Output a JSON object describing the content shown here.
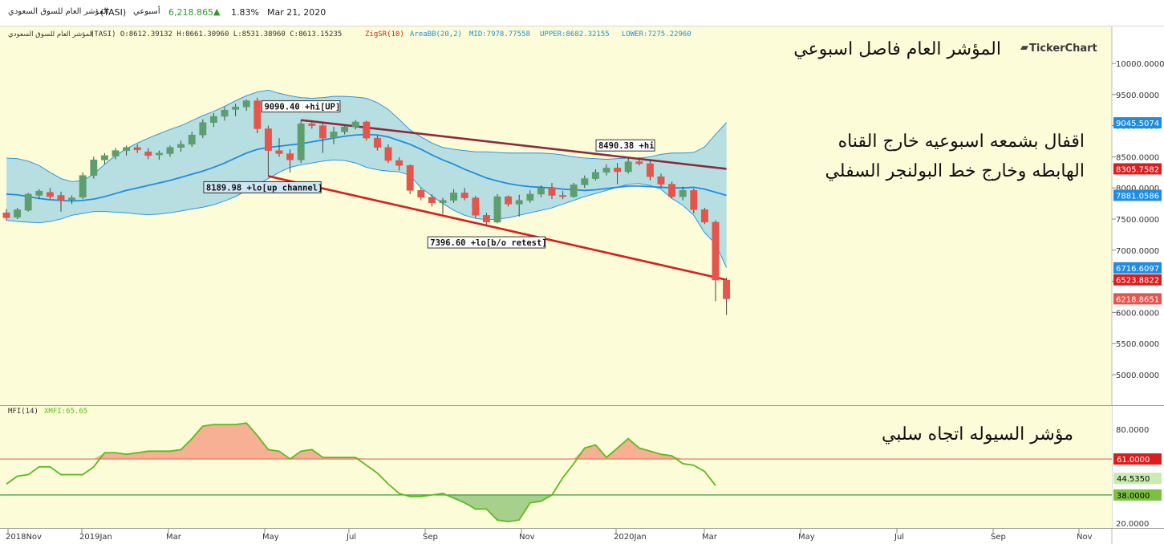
{
  "header": {
    "name": "المؤشر العام للسوق السعودي",
    "symbol": "(TASI)",
    "period": "أسبوعي",
    "last": "6,218.865",
    "change_pct": "1.83%",
    "date": "Mar 21, 2020",
    "up_color": "#2e9a2e"
  },
  "info_line": {
    "name": "المؤشر العام للسوق السعودي",
    "ohlc": "(TASI)  O:8612.39132  H:8661.30960  L:8531.38960  C:8613.15235",
    "zigsr": "ZigSR(10)",
    "bb": "AreaBB(20,2)",
    "mid": "MID:7978.77558",
    "upper": "UPPER:8682.32155",
    "lower": "LOWER:7275.22960"
  },
  "brand": "TickerChart",
  "annotations": {
    "title": "المؤشر العام فاصل اسبوعي",
    "note_line1": "اقفال بشمعه اسبوعيه خارج القناه",
    "note_line2": "الهابطه وخارج خط البولنجر السفلي",
    "mfi_note": "مؤشر السيوله اتجاه سلبي"
  },
  "mfi_header": {
    "label": "MFI(14)",
    "xmfi": "XMFI:65.65"
  },
  "chart_data": [
    {
      "type": "candlestick",
      "ylim": [
        4600,
        10400
      ],
      "y_ticks": [
        "10000.0000",
        "9500.0000",
        "9000.0000",
        "8500.0000",
        "8000.0000",
        "7500.0000",
        "7000.0000",
        "6500.0000",
        "6000.0000",
        "5500.0000",
        "5000.0000"
      ],
      "x_ticks": [
        "2018Nov",
        "2019Jan",
        "Mar",
        "May",
        "Jul",
        "Sep",
        "Nov",
        "2020Jan",
        "Mar",
        "May",
        "Jul",
        "Sep",
        "Nov"
      ],
      "candles": [
        {
          "o": 7600,
          "h": 7660,
          "l": 7480,
          "c": 7520
        },
        {
          "o": 7530,
          "h": 7680,
          "l": 7500,
          "c": 7650
        },
        {
          "o": 7640,
          "h": 7920,
          "l": 7620,
          "c": 7900
        },
        {
          "o": 7880,
          "h": 7980,
          "l": 7820,
          "c": 7950
        },
        {
          "o": 7930,
          "h": 8000,
          "l": 7820,
          "c": 7860
        },
        {
          "o": 7880,
          "h": 7940,
          "l": 7620,
          "c": 7800
        },
        {
          "o": 7810,
          "h": 7880,
          "l": 7740,
          "c": 7840
        },
        {
          "o": 7850,
          "h": 8250,
          "l": 7820,
          "c": 8200
        },
        {
          "o": 8200,
          "h": 8500,
          "l": 8150,
          "c": 8450
        },
        {
          "o": 8450,
          "h": 8560,
          "l": 8380,
          "c": 8520
        },
        {
          "o": 8510,
          "h": 8640,
          "l": 8460,
          "c": 8600
        },
        {
          "o": 8600,
          "h": 8680,
          "l": 8520,
          "c": 8650
        },
        {
          "o": 8650,
          "h": 8700,
          "l": 8560,
          "c": 8610
        },
        {
          "o": 8580,
          "h": 8640,
          "l": 8460,
          "c": 8520
        },
        {
          "o": 8530,
          "h": 8600,
          "l": 8450,
          "c": 8560
        },
        {
          "o": 8550,
          "h": 8680,
          "l": 8500,
          "c": 8650
        },
        {
          "o": 8650,
          "h": 8760,
          "l": 8580,
          "c": 8700
        },
        {
          "o": 8700,
          "h": 8900,
          "l": 8660,
          "c": 8850
        },
        {
          "o": 8850,
          "h": 9100,
          "l": 8800,
          "c": 9050
        },
        {
          "o": 9050,
          "h": 9200,
          "l": 8980,
          "c": 9150
        },
        {
          "o": 9150,
          "h": 9300,
          "l": 9080,
          "c": 9250
        },
        {
          "o": 9260,
          "h": 9350,
          "l": 9150,
          "c": 9300
        },
        {
          "o": 9300,
          "h": 9420,
          "l": 9240,
          "c": 9400
        },
        {
          "o": 9400,
          "h": 9450,
          "l": 8880,
          "c": 8950
        },
        {
          "o": 8950,
          "h": 9000,
          "l": 8190,
          "c": 8600
        },
        {
          "o": 8600,
          "h": 8800,
          "l": 8500,
          "c": 8550
        },
        {
          "o": 8550,
          "h": 8620,
          "l": 8250,
          "c": 8450
        },
        {
          "o": 8450,
          "h": 9090,
          "l": 8400,
          "c": 9030
        },
        {
          "o": 9030,
          "h": 9080,
          "l": 8950,
          "c": 9000
        },
        {
          "o": 9000,
          "h": 9050,
          "l": 8560,
          "c": 8800
        },
        {
          "o": 8800,
          "h": 8980,
          "l": 8700,
          "c": 8900
        },
        {
          "o": 8900,
          "h": 9020,
          "l": 8860,
          "c": 8980
        },
        {
          "o": 8980,
          "h": 9090,
          "l": 8940,
          "c": 9060
        },
        {
          "o": 9060,
          "h": 9080,
          "l": 8760,
          "c": 8800
        },
        {
          "o": 8800,
          "h": 8840,
          "l": 8600,
          "c": 8650
        },
        {
          "o": 8650,
          "h": 8700,
          "l": 8400,
          "c": 8440
        },
        {
          "o": 8440,
          "h": 8490,
          "l": 8280,
          "c": 8360
        },
        {
          "o": 8360,
          "h": 8380,
          "l": 7900,
          "c": 7960
        },
        {
          "o": 7960,
          "h": 8010,
          "l": 7800,
          "c": 7850
        },
        {
          "o": 7850,
          "h": 7900,
          "l": 7700,
          "c": 7760
        },
        {
          "o": 7760,
          "h": 7840,
          "l": 7580,
          "c": 7800
        },
        {
          "o": 7800,
          "h": 7980,
          "l": 7760,
          "c": 7920
        },
        {
          "o": 7920,
          "h": 8000,
          "l": 7800,
          "c": 7840
        },
        {
          "o": 7840,
          "h": 7870,
          "l": 7520,
          "c": 7560
        },
        {
          "o": 7560,
          "h": 7600,
          "l": 7396,
          "c": 7450
        },
        {
          "o": 7450,
          "h": 7900,
          "l": 7430,
          "c": 7860
        },
        {
          "o": 7860,
          "h": 7880,
          "l": 7700,
          "c": 7740
        },
        {
          "o": 7740,
          "h": 7890,
          "l": 7540,
          "c": 7800
        },
        {
          "o": 7800,
          "h": 7960,
          "l": 7760,
          "c": 7900
        },
        {
          "o": 7900,
          "h": 8040,
          "l": 7850,
          "c": 8000
        },
        {
          "o": 8000,
          "h": 8080,
          "l": 7820,
          "c": 7880
        },
        {
          "o": 7880,
          "h": 7950,
          "l": 7820,
          "c": 7860
        },
        {
          "o": 7860,
          "h": 8080,
          "l": 7840,
          "c": 8050
        },
        {
          "o": 8050,
          "h": 8200,
          "l": 8000,
          "c": 8150
        },
        {
          "o": 8150,
          "h": 8300,
          "l": 8120,
          "c": 8250
        },
        {
          "o": 8250,
          "h": 8380,
          "l": 8200,
          "c": 8320
        },
        {
          "o": 8320,
          "h": 8400,
          "l": 8060,
          "c": 8260
        },
        {
          "o": 8260,
          "h": 8480,
          "l": 8230,
          "c": 8420
        },
        {
          "o": 8420,
          "h": 8490,
          "l": 8360,
          "c": 8390
        },
        {
          "o": 8390,
          "h": 8440,
          "l": 8120,
          "c": 8180
        },
        {
          "o": 8180,
          "h": 8230,
          "l": 8000,
          "c": 8060
        },
        {
          "o": 8060,
          "h": 8100,
          "l": 7830,
          "c": 7860
        },
        {
          "o": 7860,
          "h": 8020,
          "l": 7800,
          "c": 7960
        },
        {
          "o": 7960,
          "h": 7990,
          "l": 7590,
          "c": 7650
        },
        {
          "o": 7650,
          "h": 7680,
          "l": 7420,
          "c": 7450
        },
        {
          "o": 7450,
          "h": 7480,
          "l": 6180,
          "c": 6520
        },
        {
          "o": 6520,
          "h": 6560,
          "l": 5960,
          "c": 6219
        }
      ],
      "bb_upper": [
        8480,
        8470,
        8430,
        8360,
        8250,
        8150,
        8100,
        8120,
        8220,
        8380,
        8520,
        8630,
        8720,
        8800,
        8870,
        8940,
        9000,
        9080,
        9160,
        9230,
        9310,
        9400,
        9480,
        9540,
        9570,
        9520,
        9480,
        9450,
        9440,
        9450,
        9470,
        9470,
        9460,
        9440,
        9370,
        9260,
        9100,
        8930,
        8820,
        8720,
        8650,
        8620,
        8600,
        8580,
        8580,
        8570,
        8560,
        8560,
        8560,
        8560,
        8550,
        8530,
        8500,
        8480,
        8470,
        8460,
        8470,
        8480,
        8480,
        8500,
        8540,
        8560,
        8560,
        8570,
        8660,
        8860,
        9050
      ],
      "bb_mid": [
        7900,
        7890,
        7860,
        7830,
        7810,
        7800,
        7790,
        7800,
        7820,
        7860,
        7910,
        7960,
        8000,
        8040,
        8080,
        8120,
        8170,
        8220,
        8270,
        8330,
        8400,
        8480,
        8560,
        8620,
        8650,
        8670,
        8690,
        8710,
        8740,
        8770,
        8800,
        8830,
        8850,
        8860,
        8850,
        8820,
        8760,
        8700,
        8620,
        8530,
        8450,
        8380,
        8300,
        8230,
        8160,
        8110,
        8070,
        8040,
        8020,
        8010,
        8000,
        7980,
        7970,
        7960,
        7970,
        7990,
        8010,
        8030,
        8030,
        8020,
        8010,
        8000,
        8000,
        8010,
        7980,
        7930,
        7880
      ],
      "bb_lower": [
        7480,
        7460,
        7450,
        7440,
        7460,
        7500,
        7560,
        7590,
        7620,
        7620,
        7610,
        7600,
        7580,
        7570,
        7580,
        7600,
        7630,
        7660,
        7690,
        7730,
        7790,
        7860,
        7960,
        8050,
        8150,
        8250,
        8330,
        8370,
        8400,
        8430,
        8450,
        8440,
        8400,
        8330,
        8290,
        8270,
        8260,
        8200,
        8000,
        7870,
        7750,
        7640,
        7560,
        7510,
        7490,
        7500,
        7520,
        7560,
        7600,
        7640,
        7680,
        7740,
        7800,
        7860,
        7910,
        7960,
        8010,
        8060,
        8070,
        8040,
        7980,
        7830,
        7720,
        7560,
        7280,
        7100,
        6720
      ],
      "zigzag_labels": [
        "9090.40 +hi[UP]",
        "8189.98 +lo[up channel]",
        "7396.60 +lo[b/o retest]",
        "8490.38 +hi"
      ],
      "trendlines": [
        {
          "name": "upper channel",
          "color": "#8b2b3b",
          "points": [
            [
              27,
              9090
            ],
            [
              66,
              8305.7582
            ]
          ]
        },
        {
          "name": "lower channel",
          "color": "#d81e1e",
          "points": [
            [
              24,
              8190
            ],
            [
              66,
              6523.8822
            ]
          ]
        }
      ],
      "price_tags": [
        {
          "value": 9045.5074,
          "label": "9045.5074",
          "color": "#1e8de0"
        },
        {
          "value": 8305.7582,
          "label": "8305.7582",
          "color": "#d81e1e"
        },
        {
          "value": 7881.0586,
          "label": "7881.0586",
          "color": "#1e8de0"
        },
        {
          "value": 6716.6097,
          "label": "6716.6097",
          "color": "#1e8de0"
        },
        {
          "value": 6523.8822,
          "label": "6523.8822",
          "color": "#d81e1e"
        },
        {
          "value": 6218.8651,
          "label": "6218.8651",
          "color": "#e4554c"
        }
      ],
      "colors": {
        "up": "#5c9e6e",
        "down": "#e4554c",
        "band": "#b7dfe2",
        "mid": "#1e8de0",
        "background": "#fcfcd8"
      }
    },
    {
      "type": "line",
      "name": "MFI(14)",
      "ylim": [
        15,
        90
      ],
      "y_ticks": [
        "80.0000",
        "20.0000"
      ],
      "upper_level": 61.0,
      "lower_level": 38.0,
      "upper_label": "61.0000",
      "lower_label": "38.0000",
      "last_label": "44.5350",
      "values": [
        45,
        50,
        51,
        56,
        56,
        51,
        51,
        51,
        56,
        65,
        65,
        64,
        65,
        66,
        66,
        66,
        67,
        74,
        82,
        83,
        83,
        83,
        84,
        76,
        67,
        66,
        61,
        66,
        67,
        62,
        62,
        62,
        62,
        57,
        52,
        45,
        39,
        37,
        37,
        38,
        39,
        36,
        33,
        29,
        29,
        22,
        21,
        22,
        33,
        34,
        38,
        49,
        58,
        68,
        70,
        62,
        68,
        74,
        68,
        66,
        64,
        63,
        58,
        57,
        53,
        44
      ],
      "colors": {
        "line": "#5dbb1e",
        "overbought": "#f7b093",
        "oversold": "#a8d08d",
        "upper": "#e47060",
        "lower": "#3a9a3a",
        "background": "#fcfcd8"
      }
    }
  ]
}
